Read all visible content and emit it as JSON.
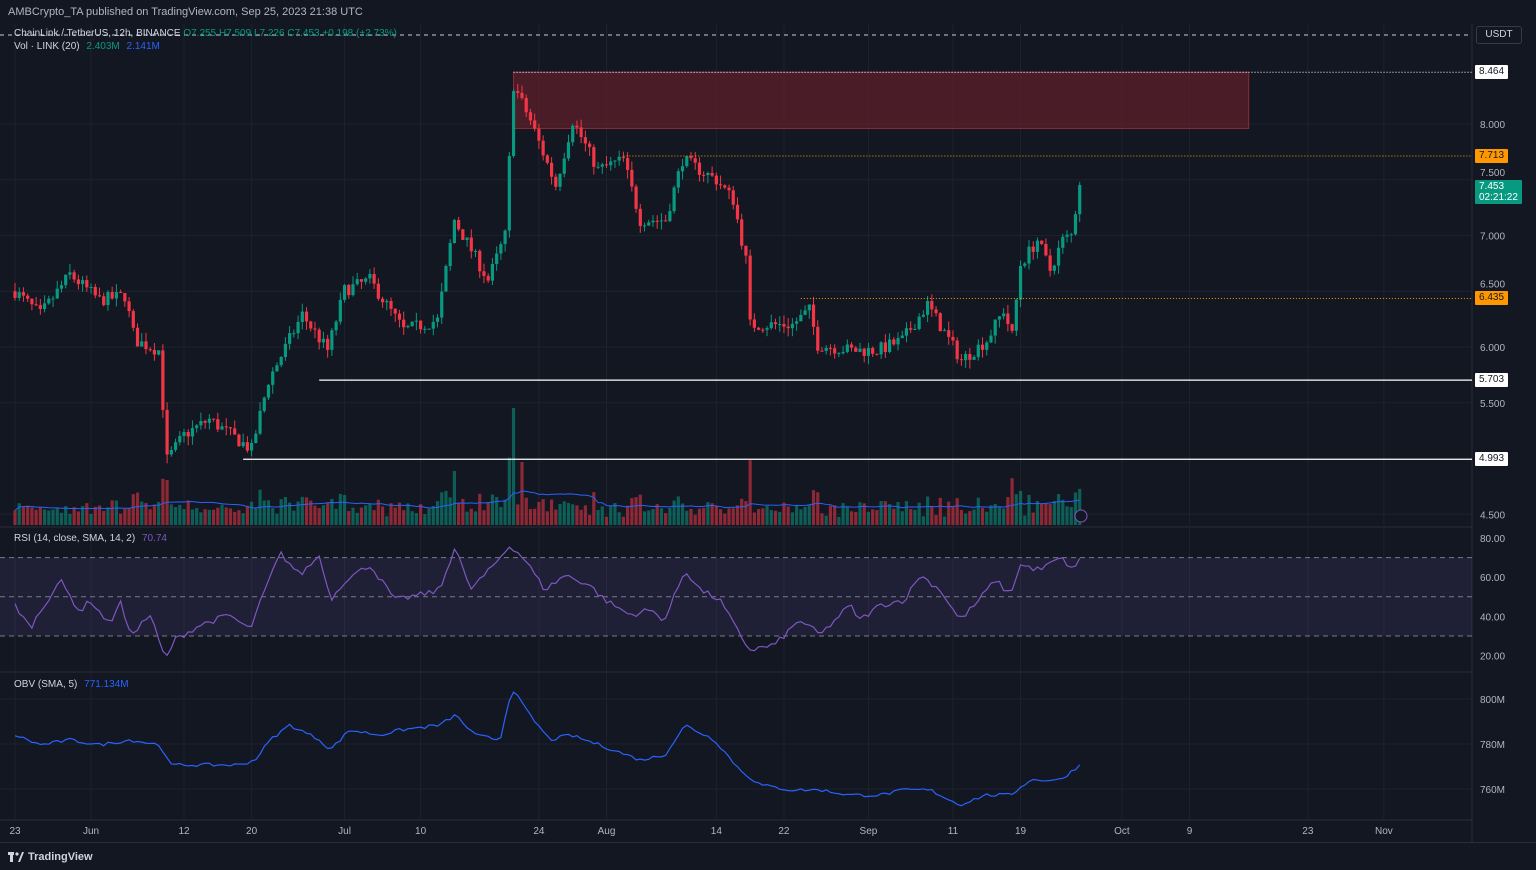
{
  "header": {
    "published": "AMBCrypto_TA published on TradingView.com, Sep 25, 2023 21:38 UTC"
  },
  "legend": {
    "symbol": "ChainLink / TetherUS, 12h, BINANCE",
    "o": "O7.255",
    "h": "H7.509",
    "l": "L7.226",
    "c": "C7.453",
    "chg": "+0.198 (+2.73%)",
    "vol_title": "Vol · LINK (20)",
    "vol_val": "2.403M",
    "vol_ma": "2.141M",
    "rsi_title": "RSI (14, close, SMA, 14, 2)",
    "rsi_val": "70.74",
    "obv_title": "OBV (SMA, 5)",
    "obv_val": "771.134M"
  },
  "axis": {
    "currency": "USDT",
    "price_ticks": [
      "8.000",
      "7.500",
      "7.000",
      "6.500",
      "6.000",
      "5.500",
      "4.500"
    ],
    "price_tick_values": [
      8,
      7.5,
      7,
      6.5,
      6,
      5.5,
      4.5
    ],
    "rsi_ticks": [
      "80.00",
      "60.00",
      "40.00",
      "20.00"
    ],
    "rsi_tick_values": [
      80,
      60,
      40,
      20
    ],
    "obv_ticks": [
      "800M",
      "780M",
      "760M"
    ],
    "obv_tick_values": [
      800,
      780,
      760
    ],
    "time_ticks": [
      {
        "label": "23",
        "day": 0
      },
      {
        "label": "Jun",
        "day": 9
      },
      {
        "label": "12",
        "day": 20
      },
      {
        "label": "20",
        "day": 28
      },
      {
        "label": "Jul",
        "day": 39
      },
      {
        "label": "10",
        "day": 48
      },
      {
        "label": "24",
        "day": 62
      },
      {
        "label": "Aug",
        "day": 70
      },
      {
        "label": "14",
        "day": 83
      },
      {
        "label": "22",
        "day": 91
      },
      {
        "label": "Sep",
        "day": 101
      },
      {
        "label": "11",
        "day": 111
      },
      {
        "label": "19",
        "day": 119
      },
      {
        "label": "Oct",
        "day": 131
      },
      {
        "label": "9",
        "day": 139
      },
      {
        "label": "23",
        "day": 153
      },
      {
        "label": "Nov",
        "day": 162
      }
    ]
  },
  "levels": [
    {
      "label": "8.464",
      "price": 8.464,
      "style": "dotted",
      "color": "#ffffff",
      "from_day": 59
    },
    {
      "label": "7.713",
      "price": 7.713,
      "style": "dotted",
      "color": "#ff9800",
      "from_day": 72
    },
    {
      "label": "6.435",
      "price": 6.435,
      "style": "dotted",
      "color": "#ff9800",
      "from_day": 93
    },
    {
      "label": "5.703",
      "price": 5.703,
      "style": "solid",
      "color": "#ffffff",
      "from_day": 36
    },
    {
      "label": "4.993",
      "price": 4.993,
      "style": "solid",
      "color": "#ffffff",
      "from_day": 27
    }
  ],
  "current": {
    "price": "7.453",
    "countdown": "02:21:22",
    "color": "#089981"
  },
  "colors": {
    "up": "#089981",
    "down": "#f23645",
    "rsi": "#7e57c2",
    "obv": "#2962ff",
    "zone": "#5d1f2a"
  },
  "chart_data": {
    "type": "candlestick",
    "title": "ChainLink / TetherUS, 12h, BINANCE",
    "x_unit": "days since May 23 2023",
    "ylim": [
      4.4,
      8.65
    ],
    "supply_zone": {
      "from_day": 59,
      "to_day": 146,
      "top": 8.464,
      "bottom": 7.96
    },
    "price_close_keypoints": [
      [
        0,
        6.5
      ],
      [
        3,
        6.29
      ],
      [
        6.5,
        6.65
      ],
      [
        10,
        6.42
      ],
      [
        13,
        6.46
      ],
      [
        14.2,
        6.06
      ],
      [
        17,
        5.97
      ],
      [
        18,
        4.99
      ],
      [
        20,
        5.21
      ],
      [
        23,
        5.35
      ],
      [
        28,
        5.08
      ],
      [
        30,
        5.7
      ],
      [
        34,
        6.29
      ],
      [
        37,
        5.97
      ],
      [
        39,
        6.51
      ],
      [
        42,
        6.6
      ],
      [
        46,
        6.15
      ],
      [
        50,
        6.24
      ],
      [
        52,
        7.14
      ],
      [
        56,
        6.6
      ],
      [
        58,
        7.0
      ],
      [
        59,
        8.35
      ],
      [
        61,
        8.03
      ],
      [
        64,
        7.45
      ],
      [
        66,
        8.03
      ],
      [
        69,
        7.59
      ],
      [
        72,
        7.68
      ],
      [
        74,
        7.14
      ],
      [
        77,
        7.14
      ],
      [
        79,
        7.68
      ],
      [
        83,
        7.5
      ],
      [
        85,
        7.32
      ],
      [
        86.5,
        6.78
      ],
      [
        87,
        6.2
      ],
      [
        92,
        6.2
      ],
      [
        94,
        6.33
      ],
      [
        95,
        6.02
      ],
      [
        99,
        5.97
      ],
      [
        102,
        5.97
      ],
      [
        105,
        6.06
      ],
      [
        108,
        6.38
      ],
      [
        112,
        5.88
      ],
      [
        115,
        6.06
      ],
      [
        117,
        6.33
      ],
      [
        118,
        6.1
      ],
      [
        119,
        6.74
      ],
      [
        121,
        6.96
      ],
      [
        122.5,
        6.69
      ],
      [
        124,
        6.96
      ],
      [
        125,
        7.0
      ],
      [
        126,
        7.453
      ]
    ],
    "volume_spikes": [
      [
        18,
        2.5
      ],
      [
        52,
        3.0
      ],
      [
        59,
        6.5
      ],
      [
        60,
        3.5
      ],
      [
        87,
        3.6
      ],
      [
        118,
        2.6
      ]
    ],
    "rsi": [
      [
        0,
        45.8
      ],
      [
        1.8,
        34.1
      ],
      [
        5.3,
        58.6
      ],
      [
        7.7,
        42.2
      ],
      [
        8.9,
        48.4
      ],
      [
        11.2,
        35.6
      ],
      [
        12.4,
        48.4
      ],
      [
        13.6,
        30.5
      ],
      [
        16,
        40.7
      ],
      [
        17.8,
        17.8
      ],
      [
        18.9,
        28
      ],
      [
        21.9,
        35.6
      ],
      [
        25.4,
        40.7
      ],
      [
        27.8,
        33.1
      ],
      [
        29.6,
        53.5
      ],
      [
        31.4,
        72.3
      ],
      [
        33.7,
        61.1
      ],
      [
        36.1,
        71.3
      ],
      [
        37.3,
        48.4
      ],
      [
        39.1,
        58.6
      ],
      [
        42,
        66.2
      ],
      [
        45,
        48.4
      ],
      [
        47.9,
        50.9
      ],
      [
        50.3,
        53.5
      ],
      [
        52.1,
        76.4
      ],
      [
        53.8,
        53.5
      ],
      [
        56.2,
        63.7
      ],
      [
        58.6,
        76.4
      ],
      [
        60.4,
        68.8
      ],
      [
        62.7,
        53.5
      ],
      [
        65.1,
        61.1
      ],
      [
        68,
        56
      ],
      [
        69.8,
        48.4
      ],
      [
        72.8,
        40.7
      ],
      [
        75.1,
        43.3
      ],
      [
        76.9,
        38.2
      ],
      [
        79.3,
        63.7
      ],
      [
        81.1,
        53.5
      ],
      [
        83.4,
        48.4
      ],
      [
        85.8,
        30.5
      ],
      [
        87,
        22.9
      ],
      [
        89.9,
        25.4
      ],
      [
        92.9,
        38.2
      ],
      [
        95.3,
        30.5
      ],
      [
        98.8,
        45.8
      ],
      [
        100,
        38.2
      ],
      [
        102.4,
        45.8
      ],
      [
        105.3,
        48.4
      ],
      [
        107.1,
        61.1
      ],
      [
        109.5,
        53.5
      ],
      [
        111.8,
        38.2
      ],
      [
        113.6,
        45.8
      ],
      [
        116,
        58.6
      ],
      [
        117.8,
        50.9
      ],
      [
        118.9,
        66.2
      ],
      [
        121.3,
        63.7
      ],
      [
        123.7,
        69.8
      ],
      [
        125.4,
        63.7
      ],
      [
        126.2,
        70.74
      ]
    ],
    "rsi_bands": [
      30,
      50,
      70
    ],
    "obv": [
      [
        0,
        784
      ],
      [
        3,
        779.6
      ],
      [
        6.5,
        781.8
      ],
      [
        10,
        779.6
      ],
      [
        13.6,
        781.8
      ],
      [
        17.2,
        779.6
      ],
      [
        18.3,
        770.7
      ],
      [
        21.9,
        770.7
      ],
      [
        26.6,
        770.7
      ],
      [
        28.4,
        772.9
      ],
      [
        30.2,
        781.8
      ],
      [
        32.5,
        788.4
      ],
      [
        36.1,
        781.8
      ],
      [
        37.3,
        777.3
      ],
      [
        39.6,
        786.2
      ],
      [
        43.2,
        784
      ],
      [
        45.6,
        786.2
      ],
      [
        50.3,
        788.4
      ],
      [
        52.1,
        792.9
      ],
      [
        54.4,
        784
      ],
      [
        57.4,
        781.8
      ],
      [
        58.8,
        804.9
      ],
      [
        60.9,
        792.9
      ],
      [
        63.3,
        781.8
      ],
      [
        65.7,
        784
      ],
      [
        69.2,
        779.6
      ],
      [
        74,
        772.9
      ],
      [
        76.9,
        775.1
      ],
      [
        79.3,
        788.4
      ],
      [
        82.8,
        781.8
      ],
      [
        85.8,
        768.4
      ],
      [
        88.2,
        761.8
      ],
      [
        91.7,
        759.6
      ],
      [
        95.3,
        759.6
      ],
      [
        98.8,
        757.3
      ],
      [
        102.4,
        757.3
      ],
      [
        105.3,
        759.6
      ],
      [
        108.3,
        759.6
      ],
      [
        111.8,
        752.9
      ],
      [
        114.8,
        757.3
      ],
      [
        117.8,
        757.3
      ],
      [
        120.1,
        764
      ],
      [
        123.7,
        764
      ],
      [
        126.2,
        771.134
      ]
    ]
  },
  "footer": {
    "brand": "TradingView"
  }
}
